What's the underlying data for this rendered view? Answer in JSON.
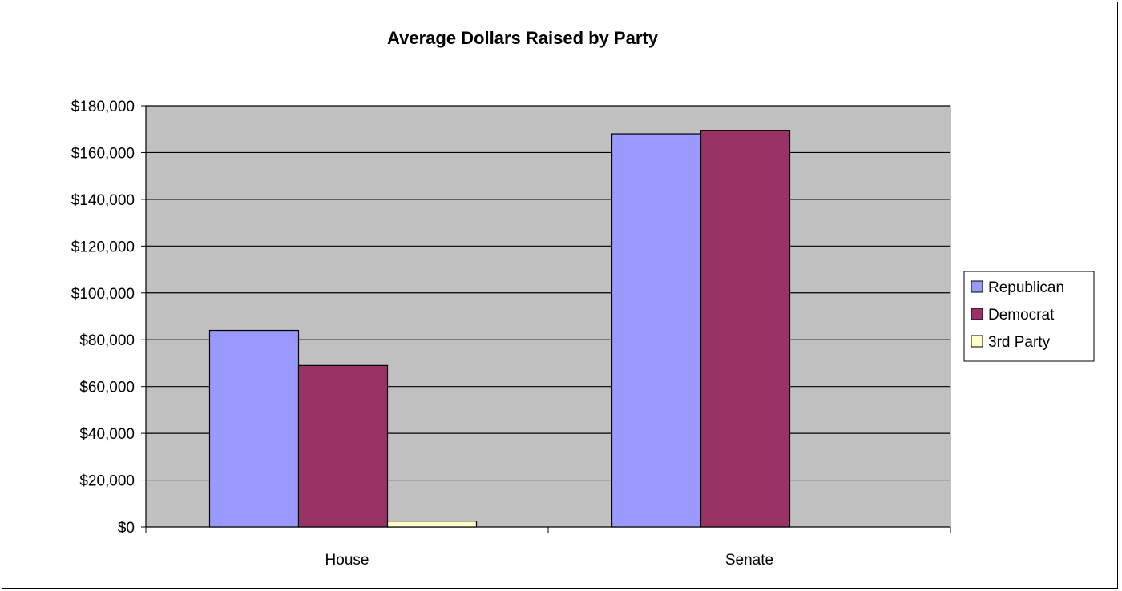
{
  "chart_data": {
    "type": "bar",
    "title": "Average Dollars Raised by Party",
    "xlabel": "",
    "ylabel": "",
    "categories": [
      "House",
      "Senate"
    ],
    "series": [
      {
        "name": "Republican",
        "values": [
          84000,
          168000
        ],
        "color": "#9999ff"
      },
      {
        "name": "Democrat",
        "values": [
          69000,
          169500
        ],
        "color": "#993366"
      },
      {
        "name": "3rd Party",
        "values": [
          2500,
          0
        ],
        "color": "#ffffcc"
      }
    ],
    "ylim": [
      0,
      180000
    ],
    "yticks": [
      "$0",
      "$20,000",
      "$40,000",
      "$60,000",
      "$80,000",
      "$100,000",
      "$120,000",
      "$140,000",
      "$160,000",
      "$180,000"
    ],
    "ytick_values": [
      0,
      20000,
      40000,
      60000,
      80000,
      100000,
      120000,
      140000,
      160000,
      180000
    ],
    "grid": true,
    "legend_position": "right",
    "plot_background": "#c0c0c0"
  }
}
